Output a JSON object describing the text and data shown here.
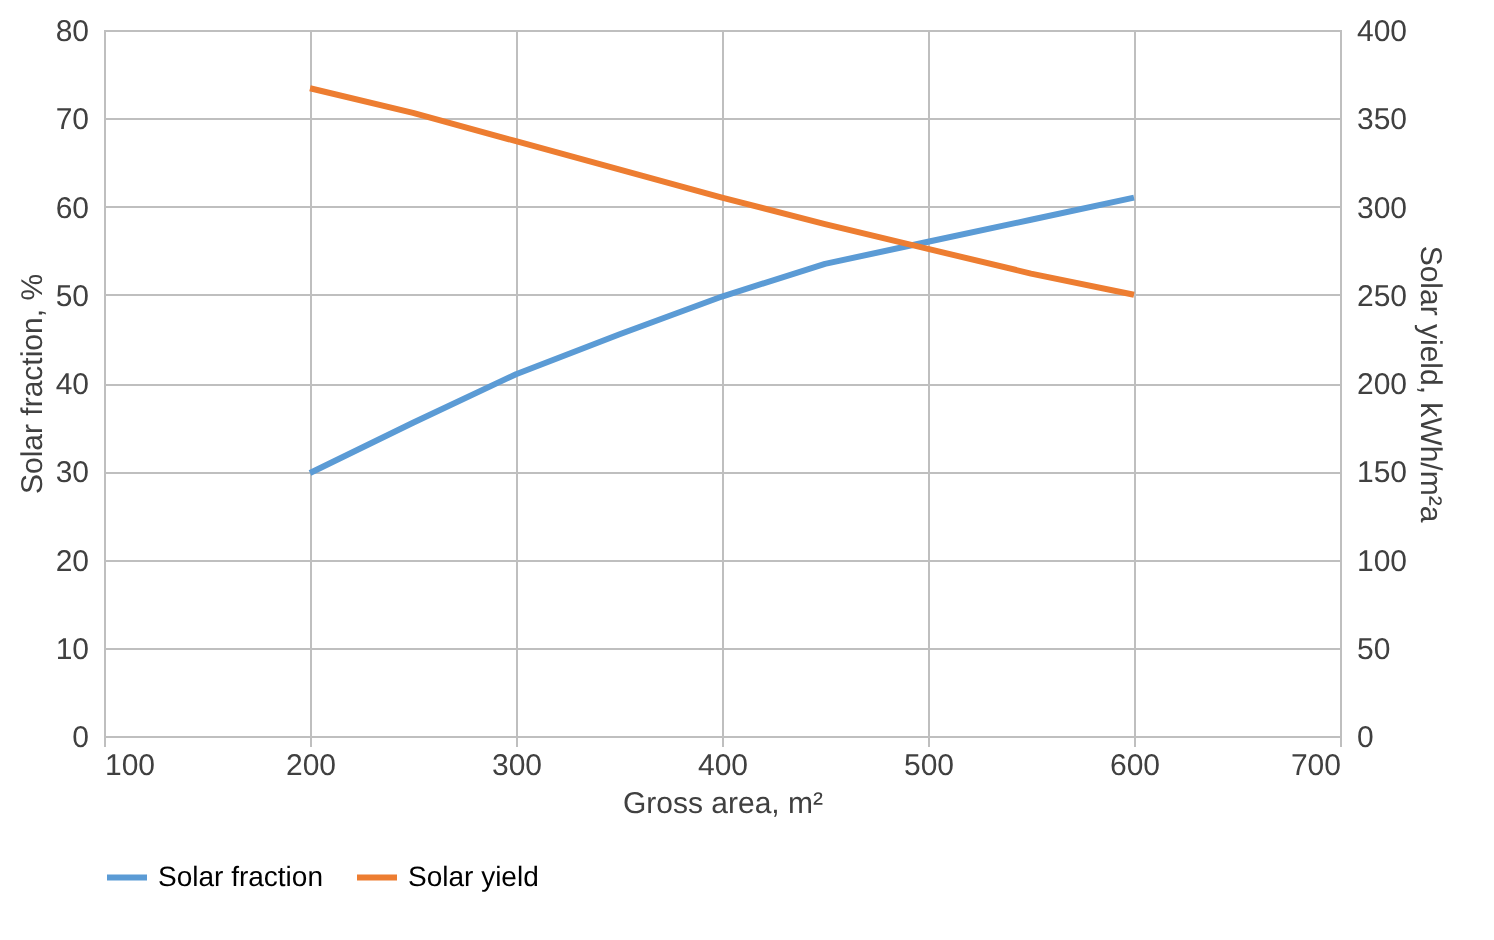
{
  "chart_data": {
    "type": "line",
    "xlabel": "Gross area, m²",
    "ylabel": "Solar fraction, %",
    "y2label": "Solar yield, kWh/m²a",
    "x": [
      200,
      250,
      300,
      350,
      400,
      450,
      500,
      550,
      600
    ],
    "series": [
      {
        "name": "Solar fraction",
        "color": "#5b9bd5",
        "values": [
          29.8,
          35.5,
          41,
          45.5,
          49.8,
          53.5,
          56,
          58.5,
          61
        ]
      },
      {
        "name": "Solar yield",
        "color": "#ed7d31",
        "axis": "y2",
        "values": [
          367,
          353,
          337,
          321,
          305,
          290,
          276,
          262,
          250
        ]
      }
    ],
    "xlim": [
      100,
      700
    ],
    "xticks": [
      100,
      200,
      300,
      400,
      500,
      600,
      700
    ],
    "ylim": [
      0,
      80
    ],
    "yticks": [
      0,
      10,
      20,
      30,
      40,
      50,
      60,
      70,
      80
    ],
    "y2lim": [
      0,
      400
    ],
    "y2ticks": [
      0,
      50,
      100,
      150,
      200,
      250,
      300,
      350,
      400
    ],
    "grid": true,
    "legend": "bottom",
    "marker": "none",
    "line_style": "solid"
  }
}
